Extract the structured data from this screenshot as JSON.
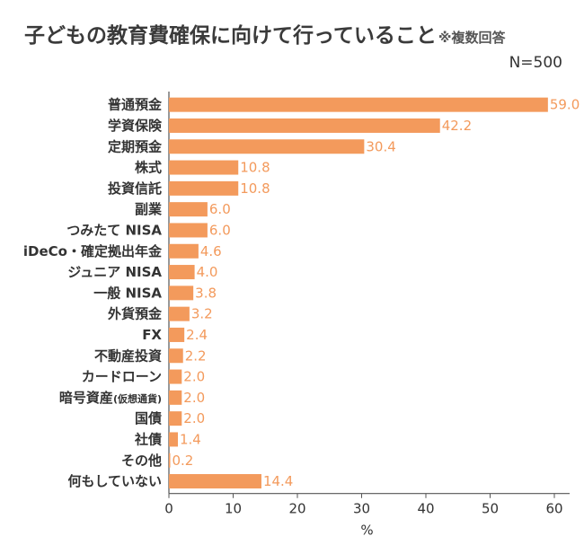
{
  "title": "子どもの教育費確保に向けて行っていること",
  "title_note": "※複数回答",
  "sample_size": "N=500",
  "chart_data": {
    "type": "bar",
    "orientation": "horizontal",
    "title": "子どもの教育費確保に向けて行っていること",
    "categories": [
      "普通預金",
      "学資保険",
      "定期預金",
      "株式",
      "投資信託",
      "副業",
      "つみたて NISA",
      "iDeCo・確定拠出年金",
      "ジュニア NISA",
      "一般 NISA",
      "外貨預金",
      "FX",
      "不動産投資",
      "カードローン",
      "暗号資産(仮想通貨)",
      "国債",
      "社債",
      "その他",
      "何もしていない"
    ],
    "values": [
      59.0,
      42.2,
      30.4,
      10.8,
      10.8,
      6.0,
      6.0,
      4.6,
      4.0,
      3.8,
      3.2,
      2.4,
      2.2,
      2.0,
      2.0,
      2.0,
      1.4,
      0.2,
      14.4
    ],
    "value_labels": [
      "59.0",
      "42.2",
      "30.4",
      "10.8",
      "10.8",
      "6.0",
      "6.0",
      "4.6",
      "4.0",
      "3.8",
      "3.2",
      "2.4",
      "2.2",
      "2.0",
      "2.0",
      "2.0",
      "1.4",
      "0.2",
      "14.4"
    ],
    "xlabel": "%",
    "ylabel": "",
    "xlim": [
      0,
      60
    ],
    "xticks": [
      "0",
      "10",
      "20",
      "30",
      "40",
      "50",
      "60"
    ],
    "bar_color": "#f39a5c",
    "value_label_color": "#f39a5c",
    "grid": false
  }
}
